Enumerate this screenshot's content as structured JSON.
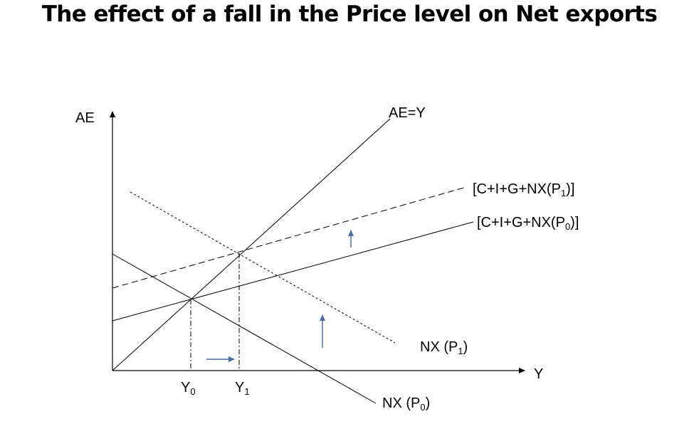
{
  "title": "The effect of a fall in the Price level on Net exports",
  "axes": {
    "y_label": "AE",
    "x_label": "Y"
  },
  "curves": {
    "ae_equals_y": "AE=Y",
    "ae_p1": {
      "main": "[C+I+G+NX(P",
      "sub": "1",
      "end": ")]"
    },
    "ae_p0": {
      "main": "[C+I+G+NX(P",
      "sub": "0",
      "end": ")]"
    },
    "nx_p1": {
      "main": "NX (P",
      "sub": "1",
      "end": ")"
    },
    "nx_p0": {
      "main": "NX (P",
      "sub": "0",
      "end": ")"
    }
  },
  "equilibria": {
    "y0": {
      "main": "Y",
      "sub": "0"
    },
    "y1": {
      "main": "Y",
      "sub": "1"
    }
  },
  "colors": {
    "lines": "#000000",
    "arrows": "#4a6fa5"
  }
}
